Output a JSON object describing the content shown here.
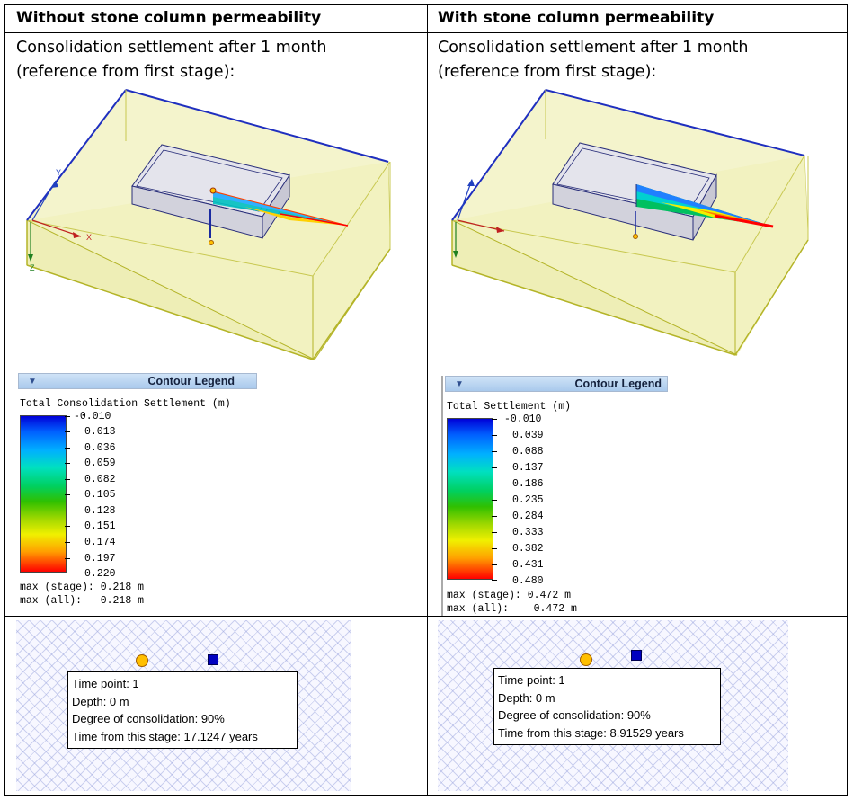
{
  "columns": [
    {
      "heading": "Without stone column permeability",
      "caption_line1": "Consolidation settlement after 1 month",
      "caption_line2": "(reference from first stage):",
      "legend": {
        "title": "Contour Legend",
        "quantity": "Total Consolidation Settlement (m)",
        "ticks": [
          "-0.010",
          "0.013",
          "0.036",
          "0.059",
          "0.082",
          "0.105",
          "0.128",
          "0.151",
          "0.174",
          "0.197",
          "0.220"
        ],
        "max_stage": "max (stage): 0.218 m",
        "max_all": "max (all):   0.218 m"
      },
      "tooltip": {
        "time_point": "Time point: 1",
        "depth": "Depth: 0 m",
        "degree": "Degree of consolidation: 90%",
        "time": "Time from this stage: 17.1247 years"
      }
    },
    {
      "heading": "With stone column permeability",
      "caption_line1": "Consolidation settlement after 1 month",
      "caption_line2": "(reference from first stage):",
      "legend": {
        "title": "Contour Legend",
        "quantity": "Total Settlement (m)",
        "ticks": [
          "-0.010",
          "0.039",
          "0.088",
          "0.137",
          "0.186",
          "0.235",
          "0.284",
          "0.333",
          "0.382",
          "0.431",
          "0.480"
        ],
        "max_stage": "max (stage): 0.472 m",
        "max_all": "max (all):    0.472 m"
      },
      "tooltip": {
        "time_point": "Time point: 1",
        "depth": "Depth: 0 m",
        "degree": "Degree of consolidation: 90%",
        "time": "Time from this stage: 8.91529 years"
      }
    }
  ],
  "axes": {
    "x": "X",
    "y": "Y",
    "z": "Z"
  },
  "colors": {
    "soil_fill": "#f4f4c8",
    "soil_edge": "#b4b428",
    "top_edge": "#1f2fbf",
    "hatch": "#a0a8dc"
  }
}
